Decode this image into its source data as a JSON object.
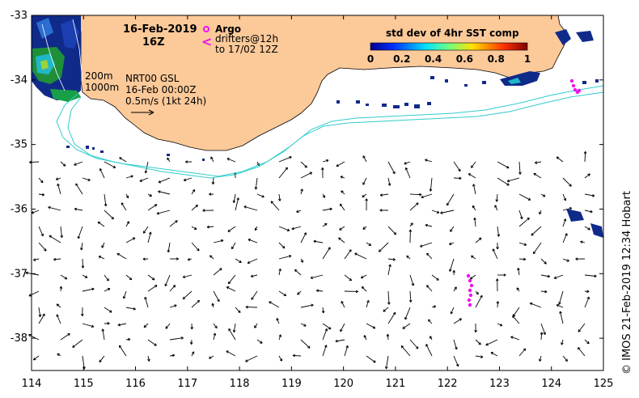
{
  "map": {
    "title_date": "16-Feb-2019",
    "title_hour": "16Z",
    "argo_label": "Argo",
    "drifters_label": "drifters@12h",
    "drifters_period": "to 17/02 12Z",
    "product": "NRT00 GSL",
    "analysis_time": "16-Feb 00:00Z",
    "scale_text": "0.5m/s (1kt 24h)",
    "contour_200": "200m",
    "contour_1000": "1000m",
    "credit": "© IMOS 21-Feb-2019 12:34 Hobart",
    "colorbar": {
      "title": "std dev of 4hr SST comp",
      "ticks": [
        "0",
        "0.2",
        "0.4",
        "0.6",
        "0.8",
        "1"
      ],
      "range": [
        0,
        1
      ]
    },
    "x_ticks": [
      "114",
      "115",
      "116",
      "117",
      "118",
      "119",
      "120",
      "121",
      "122",
      "123",
      "124",
      "125"
    ],
    "y_ticks": [
      "-33",
      "-34",
      "-35",
      "-36",
      "-37",
      "-38"
    ],
    "lon_range": [
      114,
      125
    ],
    "lat_range": [
      -38.5,
      -33
    ],
    "colors": {
      "land": "#fcc999",
      "contour": "#33cccc",
      "argo": "#ee11ee",
      "arrows": "#000000",
      "sst_low": "#102a8a"
    }
  }
}
